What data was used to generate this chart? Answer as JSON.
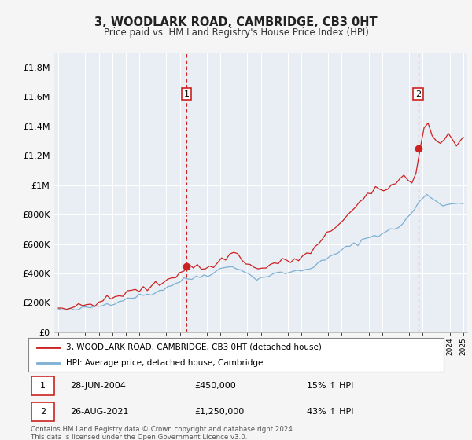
{
  "title": "3, WOODLARK ROAD, CAMBRIDGE, CB3 0HT",
  "subtitle": "Price paid vs. HM Land Registry's House Price Index (HPI)",
  "footnote": "Contains HM Land Registry data © Crown copyright and database right 2024.\nThis data is licensed under the Open Government Licence v3.0.",
  "legend_line1": "3, WOODLARK ROAD, CAMBRIDGE, CB3 0HT (detached house)",
  "legend_line2": "HPI: Average price, detached house, Cambridge",
  "marker1_date": "28-JUN-2004",
  "marker1_price": "£450,000",
  "marker1_hpi": "15% ↑ HPI",
  "marker2_date": "26-AUG-2021",
  "marker2_price": "£1,250,000",
  "marker2_hpi": "43% ↑ HPI",
  "red_color": "#cc2222",
  "blue_color": "#7eb0d4",
  "marker_box_color": "#cc2222",
  "chart_bg_color": "#e8eef4",
  "background_color": "#f5f5f5",
  "grid_color": "#ffffff",
  "marker1_x": 2004.5,
  "marker2_x": 2021.67,
  "marker1_y": 450000,
  "marker2_y": 1250000,
  "ylim": [
    0,
    1900000
  ],
  "xlim_left": 1994.7,
  "xlim_right": 2025.3,
  "yticks": [
    0,
    200000,
    400000,
    600000,
    800000,
    1000000,
    1200000,
    1400000,
    1600000,
    1800000
  ],
  "hpi_years": [
    1995.0,
    1995.3,
    1995.6,
    1995.9,
    1996.2,
    1996.5,
    1996.8,
    1997.1,
    1997.4,
    1997.7,
    1998.0,
    1998.3,
    1998.6,
    1998.9,
    1999.2,
    1999.5,
    1999.8,
    2000.1,
    2000.4,
    2000.7,
    2001.0,
    2001.3,
    2001.6,
    2001.9,
    2002.2,
    2002.5,
    2002.8,
    2003.1,
    2003.4,
    2003.7,
    2004.0,
    2004.3,
    2004.6,
    2004.9,
    2005.2,
    2005.5,
    2005.8,
    2006.1,
    2006.4,
    2006.7,
    2007.0,
    2007.3,
    2007.6,
    2007.9,
    2008.2,
    2008.5,
    2008.8,
    2009.1,
    2009.4,
    2009.7,
    2010.0,
    2010.3,
    2010.6,
    2010.9,
    2011.2,
    2011.5,
    2011.8,
    2012.1,
    2012.4,
    2012.7,
    2013.0,
    2013.3,
    2013.6,
    2013.9,
    2014.2,
    2014.5,
    2014.8,
    2015.1,
    2015.4,
    2015.7,
    2016.0,
    2016.3,
    2016.6,
    2016.9,
    2017.2,
    2017.5,
    2017.8,
    2018.1,
    2018.4,
    2018.7,
    2019.0,
    2019.3,
    2019.6,
    2019.9,
    2020.2,
    2020.5,
    2020.8,
    2021.1,
    2021.4,
    2021.7,
    2022.0,
    2022.3,
    2022.6,
    2022.9,
    2023.2,
    2023.5,
    2023.8,
    2024.1,
    2024.4,
    2024.7,
    2025.0
  ],
  "hpi_vals": [
    155000,
    152000,
    150000,
    151000,
    153000,
    156000,
    160000,
    165000,
    170000,
    175000,
    180000,
    185000,
    192000,
    198000,
    205000,
    213000,
    222000,
    230000,
    238000,
    244000,
    248000,
    252000,
    258000,
    264000,
    272000,
    283000,
    295000,
    308000,
    320000,
    335000,
    345000,
    355000,
    362000,
    368000,
    375000,
    382000,
    388000,
    395000,
    405000,
    415000,
    428000,
    438000,
    445000,
    448000,
    442000,
    430000,
    412000,
    390000,
    375000,
    368000,
    370000,
    378000,
    385000,
    392000,
    398000,
    402000,
    405000,
    408000,
    412000,
    415000,
    420000,
    428000,
    438000,
    450000,
    462000,
    478000,
    492000,
    508000,
    525000,
    542000,
    558000,
    572000,
    585000,
    595000,
    610000,
    625000,
    638000,
    648000,
    658000,
    665000,
    672000,
    682000,
    692000,
    705000,
    718000,
    740000,
    768000,
    800000,
    840000,
    880000,
    910000,
    930000,
    920000,
    900000,
    880000,
    870000,
    865000,
    870000,
    875000,
    880000,
    885000
  ],
  "red_years": [
    1995.0,
    1995.3,
    1995.6,
    1995.9,
    1996.2,
    1996.5,
    1996.8,
    1997.1,
    1997.4,
    1997.7,
    1998.0,
    1998.3,
    1998.6,
    1998.9,
    1999.2,
    1999.5,
    1999.8,
    2000.1,
    2000.4,
    2000.7,
    2001.0,
    2001.3,
    2001.6,
    2001.9,
    2002.2,
    2002.5,
    2002.8,
    2003.1,
    2003.4,
    2003.7,
    2004.0,
    2004.3,
    2004.7,
    2005.0,
    2005.3,
    2005.6,
    2005.9,
    2006.2,
    2006.5,
    2006.8,
    2007.1,
    2007.4,
    2007.7,
    2008.0,
    2008.3,
    2008.6,
    2008.9,
    2009.2,
    2009.5,
    2009.8,
    2010.1,
    2010.4,
    2010.7,
    2011.0,
    2011.3,
    2011.6,
    2011.9,
    2012.2,
    2012.5,
    2012.8,
    2013.1,
    2013.4,
    2013.7,
    2014.0,
    2014.3,
    2014.6,
    2014.9,
    2015.2,
    2015.5,
    2015.8,
    2016.1,
    2016.4,
    2016.7,
    2017.0,
    2017.3,
    2017.6,
    2017.9,
    2018.2,
    2018.5,
    2018.8,
    2019.1,
    2019.4,
    2019.7,
    2020.0,
    2020.3,
    2020.6,
    2020.9,
    2021.2,
    2021.5,
    2021.8,
    2022.1,
    2022.4,
    2022.7,
    2023.0,
    2023.3,
    2023.6,
    2023.9,
    2024.2,
    2024.5,
    2024.8,
    2025.0
  ],
  "red_vals": [
    170000,
    168000,
    165000,
    165000,
    168000,
    172000,
    178000,
    185000,
    192000,
    198000,
    205000,
    212000,
    220000,
    228000,
    238000,
    248000,
    258000,
    268000,
    276000,
    282000,
    287000,
    293000,
    300000,
    308000,
    318000,
    330000,
    345000,
    360000,
    375000,
    390000,
    405000,
    428000,
    455000,
    448000,
    442000,
    438000,
    435000,
    440000,
    455000,
    470000,
    490000,
    510000,
    530000,
    540000,
    525000,
    505000,
    480000,
    455000,
    438000,
    428000,
    432000,
    445000,
    458000,
    468000,
    475000,
    480000,
    485000,
    488000,
    492000,
    498000,
    510000,
    525000,
    545000,
    570000,
    598000,
    628000,
    658000,
    690000,
    718000,
    745000,
    770000,
    795000,
    818000,
    845000,
    875000,
    905000,
    928000,
    945000,
    958000,
    965000,
    972000,
    985000,
    998000,
    1012000,
    1035000,
    1062000,
    1035000,
    1025000,
    1100000,
    1250000,
    1380000,
    1420000,
    1350000,
    1300000,
    1280000,
    1320000,
    1350000,
    1310000,
    1280000,
    1300000,
    1320000
  ]
}
